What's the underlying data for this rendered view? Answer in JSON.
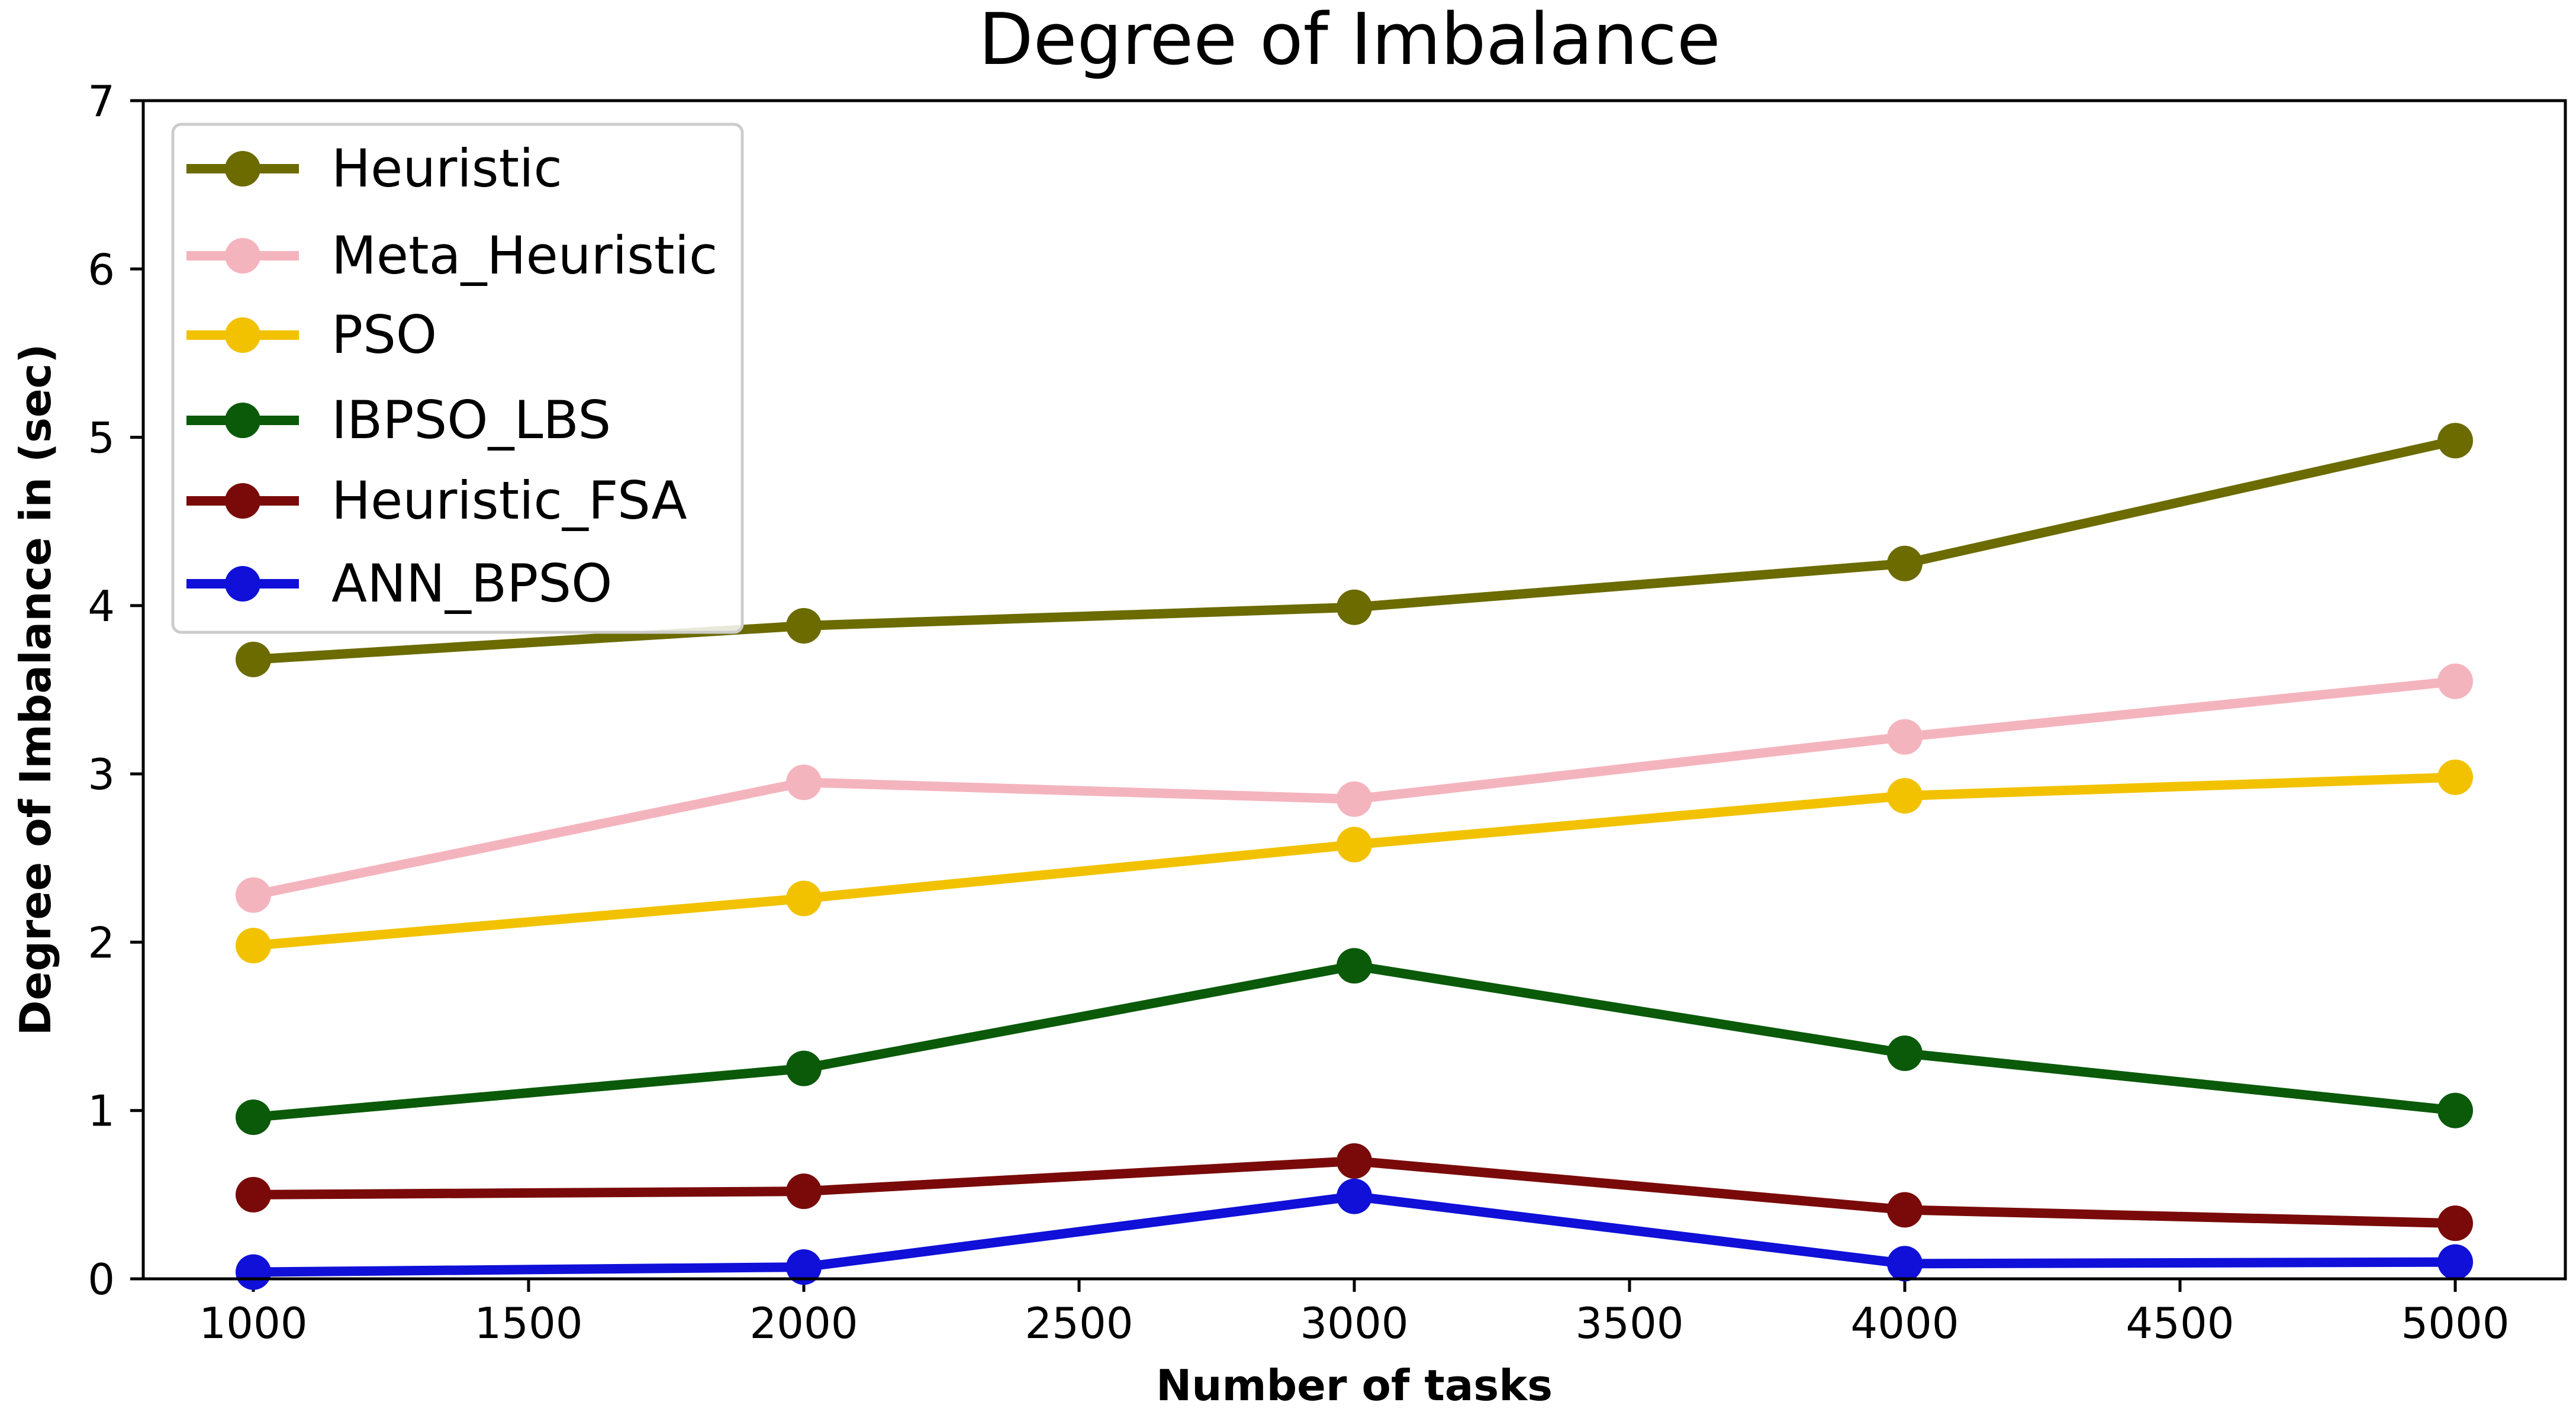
{
  "chart_data": {
    "type": "line",
    "title": "Degree of Imbalance",
    "xlabel": "Number of tasks",
    "ylabel": "Degree of Imbalance in (sec)",
    "xlim": [
      800,
      5200
    ],
    "ylim": [
      0,
      7
    ],
    "x_ticks": [
      1000,
      1500,
      2000,
      2500,
      3000,
      3500,
      4000,
      4500,
      5000
    ],
    "y_ticks": [
      0,
      1,
      2,
      3,
      4,
      5,
      6,
      7
    ],
    "grid": false,
    "legend_position": "top-left",
    "x": [
      1000,
      2000,
      3000,
      4000,
      5000
    ],
    "series": [
      {
        "name": "Heuristic",
        "color": "#6b6b00",
        "values": [
          3.68,
          3.88,
          3.99,
          4.25,
          4.98
        ]
      },
      {
        "name": "Meta_Heuristic",
        "color": "#f4b4be",
        "values": [
          2.28,
          2.95,
          2.85,
          3.22,
          3.55
        ]
      },
      {
        "name": "PSO",
        "color": "#f2c200",
        "values": [
          1.98,
          2.26,
          2.58,
          2.87,
          2.98
        ]
      },
      {
        "name": "IBPSO_LBS",
        "color": "#0a5a0a",
        "values": [
          0.96,
          1.25,
          1.86,
          1.34,
          1.0
        ]
      },
      {
        "name": "Heuristic_FSA",
        "color": "#7a0a0a",
        "values": [
          0.5,
          0.52,
          0.7,
          0.41,
          0.33
        ]
      },
      {
        "name": "ANN_BPSO",
        "color": "#1010d8",
        "values": [
          0.04,
          0.07,
          0.49,
          0.09,
          0.1
        ]
      }
    ]
  }
}
